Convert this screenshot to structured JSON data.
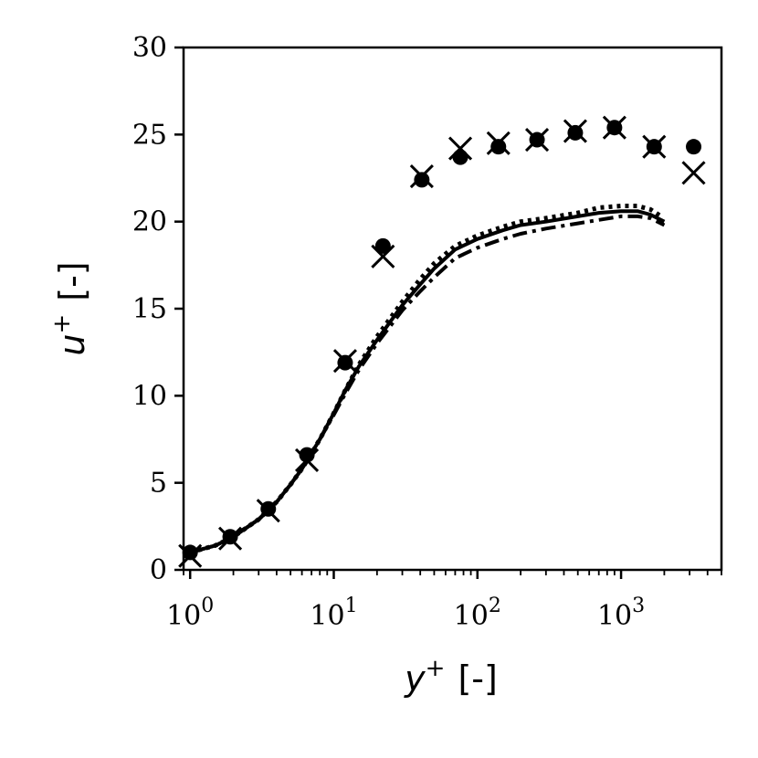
{
  "chart_data": {
    "type": "scatter",
    "title": "",
    "xlabel": {
      "var": "y",
      "sup": "+",
      "unit": "[-]"
    },
    "ylabel": {
      "var": "u",
      "sup": "+",
      "unit": "[-]"
    },
    "xscale": "log",
    "xlim": [
      0.9,
      5000
    ],
    "ylim": [
      0,
      30
    ],
    "xticks": [
      {
        "value": 1,
        "base": "10",
        "exp": "0"
      },
      {
        "value": 10,
        "base": "10",
        "exp": "1"
      },
      {
        "value": 100,
        "base": "10",
        "exp": "2"
      },
      {
        "value": 1000,
        "base": "10",
        "exp": "3"
      }
    ],
    "yticks": [
      {
        "value": 0,
        "label": "0"
      },
      {
        "value": 5,
        "label": "5"
      },
      {
        "value": 10,
        "label": "10"
      },
      {
        "value": 15,
        "label": "15"
      },
      {
        "value": 20,
        "label": "20"
      },
      {
        "value": 25,
        "label": "25"
      },
      {
        "value": 30,
        "label": "30"
      }
    ],
    "grid": false,
    "series": [
      {
        "style": "solid-line",
        "color": "#000000",
        "x": [
          1,
          1.5,
          2,
          3,
          4,
          5,
          6,
          7,
          8,
          10,
          12,
          15,
          20,
          30,
          40,
          50,
          70,
          100,
          150,
          200,
          300,
          500,
          700,
          1000,
          1300,
          1600,
          2000
        ],
        "y": [
          1.0,
          1.4,
          1.9,
          2.9,
          3.9,
          4.9,
          5.8,
          6.7,
          7.5,
          9.0,
          10.3,
          11.7,
          13.2,
          15.2,
          16.4,
          17.3,
          18.4,
          19.0,
          19.5,
          19.8,
          20.0,
          20.3,
          20.5,
          20.6,
          20.6,
          20.4,
          20.0
        ]
      },
      {
        "style": "dotted-line",
        "color": "#000000",
        "x": [
          1,
          1.5,
          2,
          3,
          4,
          5,
          6,
          7,
          8,
          10,
          12,
          15,
          20,
          30,
          40,
          50,
          70,
          100,
          150,
          200,
          300,
          500,
          700,
          1000,
          1300,
          1600,
          1900
        ],
        "y": [
          1.0,
          1.4,
          1.9,
          2.9,
          3.9,
          4.9,
          5.8,
          6.7,
          7.5,
          9.0,
          10.3,
          11.8,
          13.4,
          15.4,
          16.7,
          17.6,
          18.6,
          19.2,
          19.7,
          20.0,
          20.2,
          20.5,
          20.8,
          20.9,
          20.9,
          20.7,
          20.3
        ]
      },
      {
        "style": "dashdot-line",
        "color": "#000000",
        "x": [
          1,
          1.5,
          2,
          3,
          4,
          5,
          6,
          7,
          8,
          10,
          12,
          15,
          20,
          30,
          40,
          50,
          70,
          100,
          150,
          200,
          300,
          500,
          700,
          1000,
          1300,
          1600,
          2000
        ],
        "y": [
          1.0,
          1.4,
          1.9,
          2.9,
          3.9,
          4.9,
          5.8,
          6.7,
          7.5,
          8.9,
          10.1,
          11.5,
          13.0,
          14.9,
          16.0,
          16.8,
          17.9,
          18.5,
          19.0,
          19.3,
          19.6,
          19.9,
          20.1,
          20.3,
          20.3,
          20.2,
          19.8
        ]
      },
      {
        "style": "circle-marker",
        "color": "#000000",
        "x": [
          1,
          1.9,
          3.5,
          6.5,
          12,
          22,
          41,
          76,
          140,
          260,
          480,
          900,
          1700,
          3200
        ],
        "y": [
          1.0,
          1.9,
          3.5,
          6.6,
          11.9,
          18.6,
          22.4,
          23.7,
          24.3,
          24.7,
          25.1,
          25.4,
          24.3,
          24.3
        ]
      },
      {
        "style": "x-marker",
        "color": "#000000",
        "x": [
          1,
          1.9,
          3.5,
          6.5,
          12,
          22,
          41,
          76,
          140,
          260,
          480,
          900,
          1700,
          3200
        ],
        "y": [
          0.8,
          1.8,
          3.4,
          6.3,
          12.0,
          18.0,
          22.6,
          24.2,
          24.5,
          24.7,
          25.2,
          25.4,
          24.3,
          22.8
        ]
      }
    ]
  }
}
